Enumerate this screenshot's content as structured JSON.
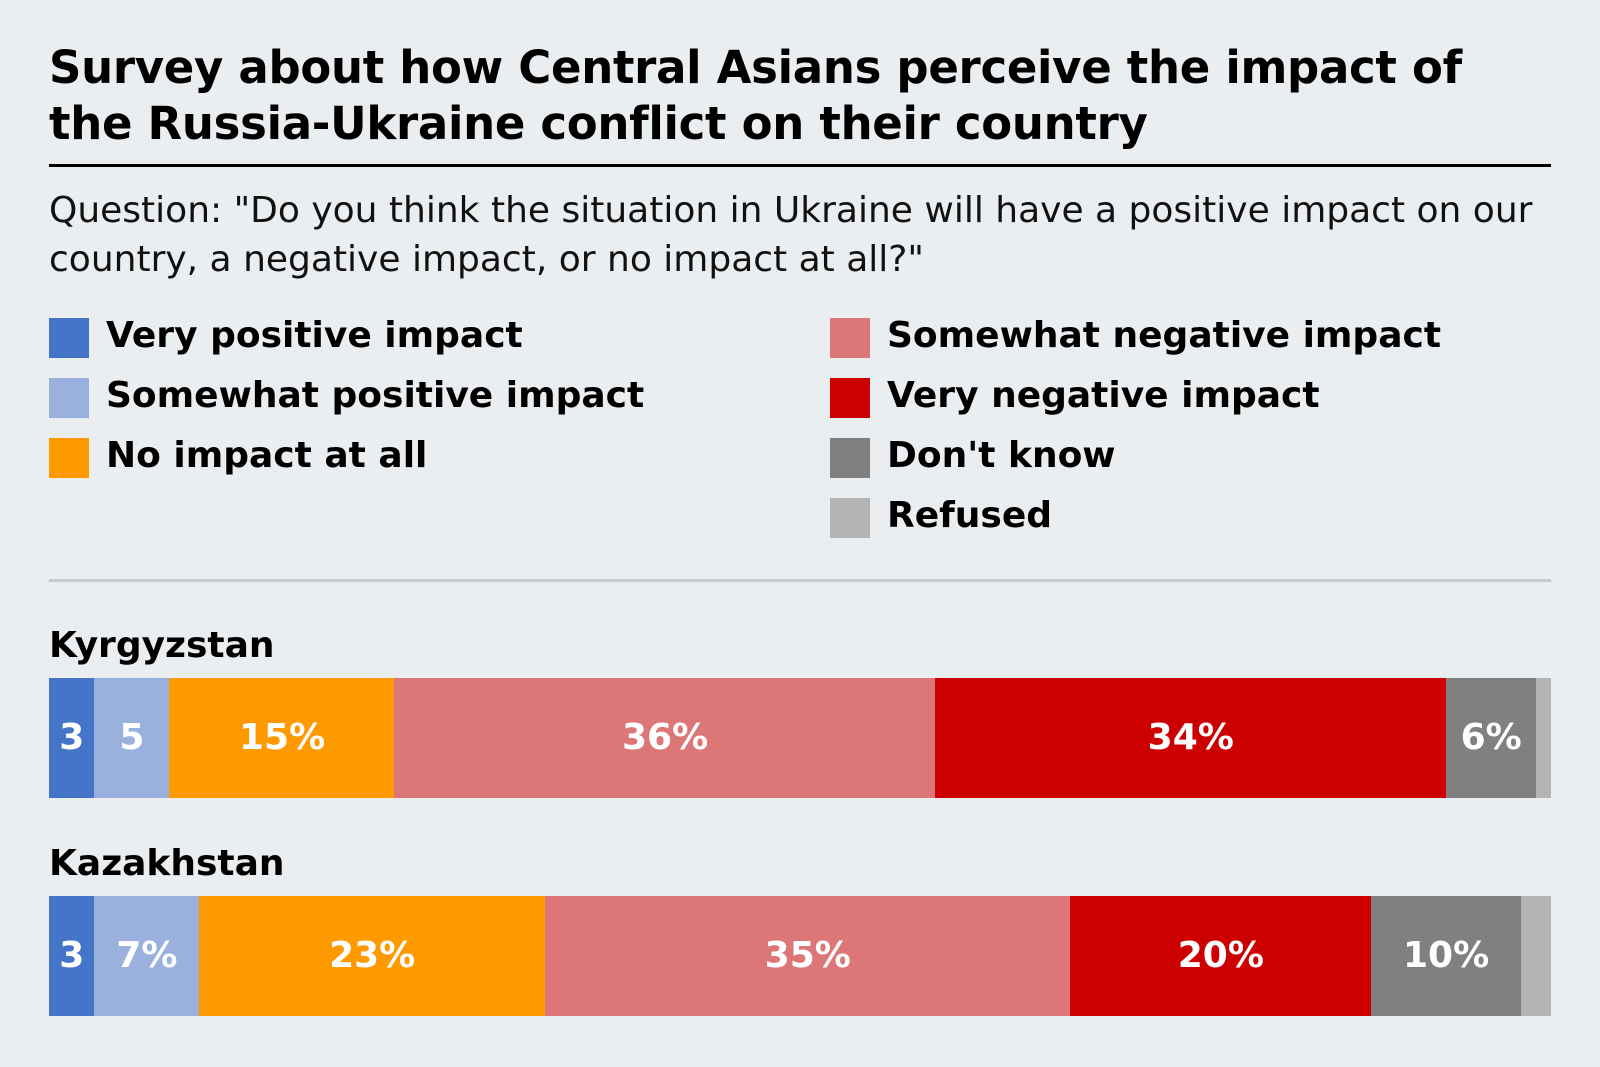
{
  "title": "Survey about how Central Asians perceive the impact of the Russia-Ukraine conflict on their country",
  "subtitle": "Question: \"Do you think the situation in Ukraine will have a positive impact on our country, a negative impact, or no impact at all?\"",
  "legend": {
    "left": [
      {
        "label": "Very positive impact",
        "color": "#4575c9"
      },
      {
        "label": "Somewhat positive impact",
        "color": "#9ab0dd"
      },
      {
        "label": "No impact at all",
        "color": "#ff9900"
      }
    ],
    "right": [
      {
        "label": "Somewhat negative impact",
        "color": "#dd7777"
      },
      {
        "label": "Very negative impact",
        "color": "#cc0000"
      },
      {
        "label": "Don't know",
        "color": "#808080"
      },
      {
        "label": "Refused",
        "color": "#b4b4b4"
      }
    ]
  },
  "chart_data": {
    "type": "bar",
    "orientation": "horizontal",
    "stacked": true,
    "categories": [
      "Kyrgyzstan",
      "Kazakhstan"
    ],
    "xlim": [
      0,
      100
    ],
    "grid": false,
    "legend_position": "top",
    "series": [
      {
        "name": "Very positive impact",
        "color": "#4575c9",
        "values": [
          3,
          3
        ],
        "labels": [
          "3",
          "3"
        ]
      },
      {
        "name": "Somewhat positive impact",
        "color": "#9ab0dd",
        "values": [
          5,
          7
        ],
        "labels": [
          "5",
          "7%"
        ]
      },
      {
        "name": "No impact at all",
        "color": "#ff9900",
        "values": [
          15,
          23
        ],
        "labels": [
          "15%",
          "23%"
        ]
      },
      {
        "name": "Somewhat negative impact",
        "color": "#dd7777",
        "values": [
          36,
          35
        ],
        "labels": [
          "36%",
          "35%"
        ]
      },
      {
        "name": "Very negative impact",
        "color": "#cc0000",
        "values": [
          34,
          20
        ],
        "labels": [
          "34%",
          "20%"
        ]
      },
      {
        "name": "Don't know",
        "color": "#808080",
        "values": [
          6,
          10
        ],
        "labels": [
          "6%",
          "10%"
        ]
      },
      {
        "name": "Refused",
        "color": "#b4b4b4",
        "values": [
          1,
          2
        ],
        "labels": [
          "",
          ""
        ]
      }
    ]
  }
}
